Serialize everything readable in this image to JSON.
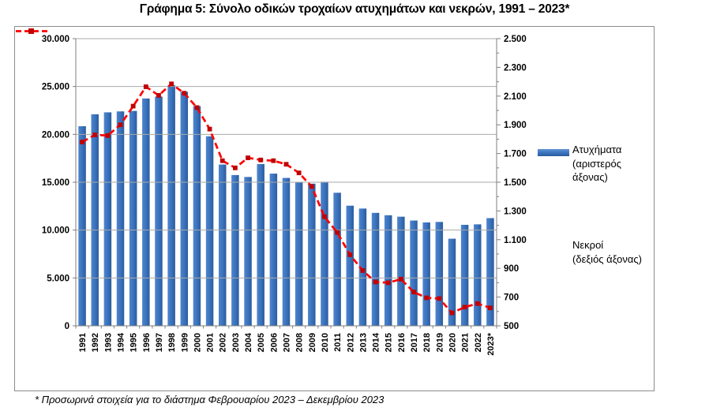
{
  "title": "Γράφημα 5: Σύνολο οδικών τροχαίων ατυχημάτων και νεκρών, 1991 – 2023*",
  "footnote": "* Προσωρινά στοιχεία για το διάστημα Φεβρουαρίου 2023 – Δεκεμβρίου 2023",
  "legend": {
    "accidents": {
      "lines": [
        "Ατυχήματα",
        "(αριστερός",
        "άξονας)"
      ]
    },
    "deaths": {
      "lines": [
        "Νεκροί",
        "(δεξιός άξονας)"
      ]
    }
  },
  "colors": {
    "bar_light": "#4e85cc",
    "bar_mid": "#3a71bc",
    "bar_dark": "#2b5c9c",
    "line_red": "#ff0000",
    "marker_red": "#c00000",
    "gridline": "#a9a9a9",
    "axis": "#7f7f7f",
    "text": "#000000"
  },
  "chart_data": {
    "type": "bar",
    "combo": "bar+line",
    "title": "Γράφημα 5: Σύνολο οδικών τροχαίων ατυχημάτων και νεκρών, 1991 – 2023*",
    "categories": [
      "1991",
      "1992",
      "1993",
      "1994",
      "1995",
      "1996",
      "1997",
      "1998",
      "1999",
      "2000",
      "2001",
      "2002",
      "2003",
      "2004",
      "2005",
      "2006",
      "2007",
      "2008",
      "2009",
      "2010",
      "2011",
      "2012",
      "2013",
      "2014",
      "2015",
      "2016",
      "2017",
      "2018",
      "2019",
      "2020",
      "2021",
      "2022",
      "2023*"
    ],
    "series": [
      {
        "name": "Ατυχήματα (αριστερός άξονας)",
        "type": "bar",
        "axis": "left",
        "values": [
          20850,
          22100,
          22300,
          22400,
          22450,
          23750,
          23950,
          25150,
          24450,
          22950,
          19800,
          16850,
          15750,
          15550,
          16900,
          15900,
          15450,
          15000,
          14850,
          15050,
          13900,
          12550,
          12250,
          11800,
          11550,
          11400,
          11000,
          10800,
          10850,
          9100,
          10550,
          10600,
          11250
        ]
      },
      {
        "name": "Νεκροί (δεξιός άξονας)",
        "type": "line",
        "axis": "right",
        "values": [
          1780,
          1830,
          1825,
          1900,
          2030,
          2165,
          2105,
          2185,
          2120,
          2020,
          1870,
          1650,
          1600,
          1670,
          1655,
          1650,
          1625,
          1565,
          1470,
          1260,
          1150,
          995,
          885,
          805,
          800,
          825,
          735,
          695,
          690,
          590,
          630,
          655,
          625
        ]
      }
    ],
    "left_axis": {
      "min": 0,
      "max": 30000,
      "step": 5000,
      "tick_labels": [
        "0",
        "5.000",
        "10.000",
        "15.000",
        "20.000",
        "25.000",
        "30.000"
      ]
    },
    "right_axis": {
      "min": 500,
      "max": 2500,
      "step": 200,
      "minor_step": 100,
      "tick_labels": [
        "500",
        "700",
        "900",
        "1.100",
        "1.300",
        "1.500",
        "1.700",
        "1.900",
        "2.100",
        "2.300",
        "2.500"
      ]
    },
    "grid": "horizontal",
    "legend_position": "right",
    "xlabel": "",
    "ylabel_left": "",
    "ylabel_right": ""
  }
}
